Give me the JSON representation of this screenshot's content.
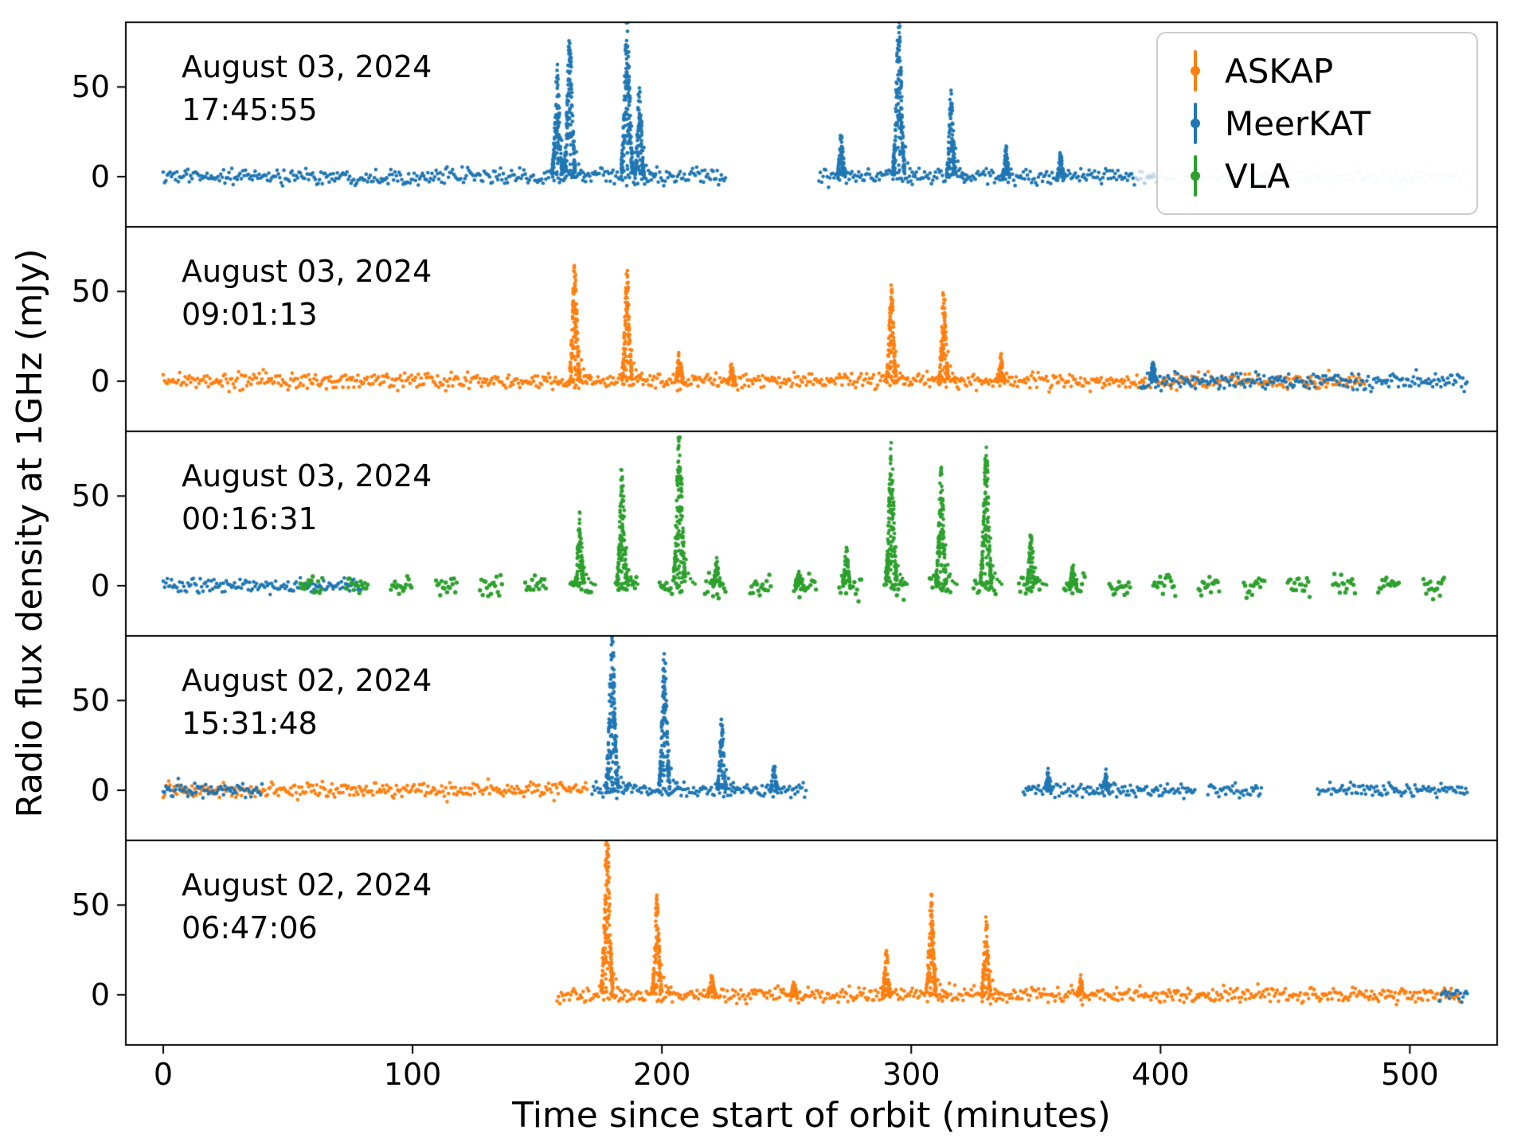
{
  "figure": {
    "xlabel": "Time since start of orbit (minutes)",
    "ylabel": "Radio flux density at 1GHz (mJy)"
  },
  "legend": {
    "items": [
      {
        "label": "ASKAP",
        "color": "#ff7f0e"
      },
      {
        "label": "MeerKAT",
        "color": "#1f77b4"
      },
      {
        "label": "VLA",
        "color": "#2ca02c"
      }
    ]
  },
  "chart_data": {
    "type": "scatter",
    "title": "",
    "xlabel": "Time since start of orbit (minutes)",
    "ylabel": "Radio flux density at 1GHz (mJy)",
    "xlim": [
      -15,
      535
    ],
    "ylim": [
      -28,
      86
    ],
    "xticks": [
      0,
      100,
      200,
      300,
      400,
      500
    ],
    "yticks": [
      0,
      50
    ],
    "grid": false,
    "legend_position": "upper right",
    "series_colors": {
      "ASKAP": "#ff7f0e",
      "MeerKAT": "#1f77b4",
      "VLA": "#2ca02c"
    },
    "panels": [
      {
        "date": "August 03, 2024",
        "time": "17:45:55",
        "segments": [
          {
            "series": "MeerKAT",
            "start": 0,
            "end": 226,
            "noise": 2.2
          },
          {
            "series": "MeerKAT",
            "start": 263,
            "end": 390,
            "noise": 2.2
          },
          {
            "series": "MeerKAT",
            "start": 390,
            "end": 523,
            "noise": 2.2,
            "alpha": 0.22
          }
        ],
        "flares": [
          {
            "series": "MeerKAT",
            "t": 158,
            "peak": 63
          },
          {
            "series": "MeerKAT",
            "t": 163,
            "peak": 80
          },
          {
            "series": "MeerKAT",
            "t": 186,
            "peak": 92
          },
          {
            "series": "MeerKAT",
            "t": 191,
            "peak": 50
          },
          {
            "series": "MeerKAT",
            "t": 272,
            "peak": 25
          },
          {
            "series": "MeerKAT",
            "t": 295,
            "peak": 92
          },
          {
            "series": "MeerKAT",
            "t": 316,
            "peak": 47
          },
          {
            "series": "MeerKAT",
            "t": 338,
            "peak": 16
          },
          {
            "series": "MeerKAT",
            "t": 360,
            "peak": 13
          }
        ]
      },
      {
        "date": "August 03, 2024",
        "time": "09:01:13",
        "segments": [
          {
            "series": "ASKAP",
            "start": 0,
            "end": 482,
            "noise": 2.2
          },
          {
            "series": "MeerKAT",
            "start": 392,
            "end": 523,
            "noise": 2.2
          }
        ],
        "flares": [
          {
            "series": "ASKAP",
            "t": 165,
            "peak": 67
          },
          {
            "series": "ASKAP",
            "t": 186,
            "peak": 63
          },
          {
            "series": "ASKAP",
            "t": 207,
            "peak": 18
          },
          {
            "series": "ASKAP",
            "t": 228,
            "peak": 8
          },
          {
            "series": "ASKAP",
            "t": 292,
            "peak": 55
          },
          {
            "series": "ASKAP",
            "t": 313,
            "peak": 52
          },
          {
            "series": "ASKAP",
            "t": 336,
            "peak": 15
          },
          {
            "series": "MeerKAT",
            "t": 397,
            "peak": 12
          }
        ]
      },
      {
        "date": "August 03, 2024",
        "time": "00:16:31",
        "segments": [
          {
            "series": "MeerKAT",
            "start": 0,
            "end": 80,
            "noise": 2.0
          },
          {
            "series": "VLA",
            "start": 55,
            "end": 523,
            "noise": 3.0,
            "scan_on": 9,
            "scan_off": 9
          }
        ],
        "flares": [
          {
            "series": "VLA",
            "t": 167,
            "peak": 40
          },
          {
            "series": "VLA",
            "t": 184,
            "peak": 66
          },
          {
            "series": "VLA",
            "t": 207,
            "peak": 92
          },
          {
            "series": "VLA",
            "t": 222,
            "peak": 16
          },
          {
            "series": "VLA",
            "t": 255,
            "peak": 8
          },
          {
            "series": "VLA",
            "t": 274,
            "peak": 22
          },
          {
            "series": "VLA",
            "t": 292,
            "peak": 80
          },
          {
            "series": "VLA",
            "t": 312,
            "peak": 66
          },
          {
            "series": "VLA",
            "t": 330,
            "peak": 80
          },
          {
            "series": "VLA",
            "t": 348,
            "peak": 30
          },
          {
            "series": "VLA",
            "t": 365,
            "peak": 12
          }
        ]
      },
      {
        "date": "August 02, 2024",
        "time": "15:31:48",
        "segments": [
          {
            "series": "ASKAP",
            "start": 0,
            "end": 170,
            "noise": 2.2
          },
          {
            "series": "MeerKAT",
            "start": 0,
            "end": 40,
            "noise": 2.0
          },
          {
            "series": "MeerKAT",
            "start": 172,
            "end": 258,
            "noise": 2.0
          },
          {
            "series": "MeerKAT",
            "start": 345,
            "end": 414,
            "noise": 2.0
          },
          {
            "series": "MeerKAT",
            "start": 419,
            "end": 441,
            "noise": 2.0
          },
          {
            "series": "MeerKAT",
            "start": 463,
            "end": 523,
            "noise": 2.0
          }
        ],
        "flares": [
          {
            "series": "MeerKAT",
            "t": 180,
            "peak": 92
          },
          {
            "series": "MeerKAT",
            "t": 201,
            "peak": 77
          },
          {
            "series": "MeerKAT",
            "t": 224,
            "peak": 40
          },
          {
            "series": "MeerKAT",
            "t": 245,
            "peak": 15
          },
          {
            "series": "MeerKAT",
            "t": 355,
            "peak": 10
          },
          {
            "series": "MeerKAT",
            "t": 378,
            "peak": 10
          }
        ]
      },
      {
        "date": "August 02, 2024",
        "time": "06:47:06",
        "segments": [
          {
            "series": "ASKAP",
            "start": 158,
            "end": 520,
            "noise": 2.2
          },
          {
            "series": "MeerKAT",
            "start": 512,
            "end": 523,
            "noise": 2.0
          }
        ],
        "flares": [
          {
            "series": "ASKAP",
            "t": 178,
            "peak": 92
          },
          {
            "series": "ASKAP",
            "t": 198,
            "peak": 55
          },
          {
            "series": "ASKAP",
            "t": 220,
            "peak": 12
          },
          {
            "series": "ASKAP",
            "t": 253,
            "peak": 6
          },
          {
            "series": "ASKAP",
            "t": 290,
            "peak": 25
          },
          {
            "series": "ASKAP",
            "t": 308,
            "peak": 57
          },
          {
            "series": "ASKAP",
            "t": 330,
            "peak": 43
          },
          {
            "series": "ASKAP",
            "t": 368,
            "peak": 8
          }
        ]
      }
    ]
  }
}
